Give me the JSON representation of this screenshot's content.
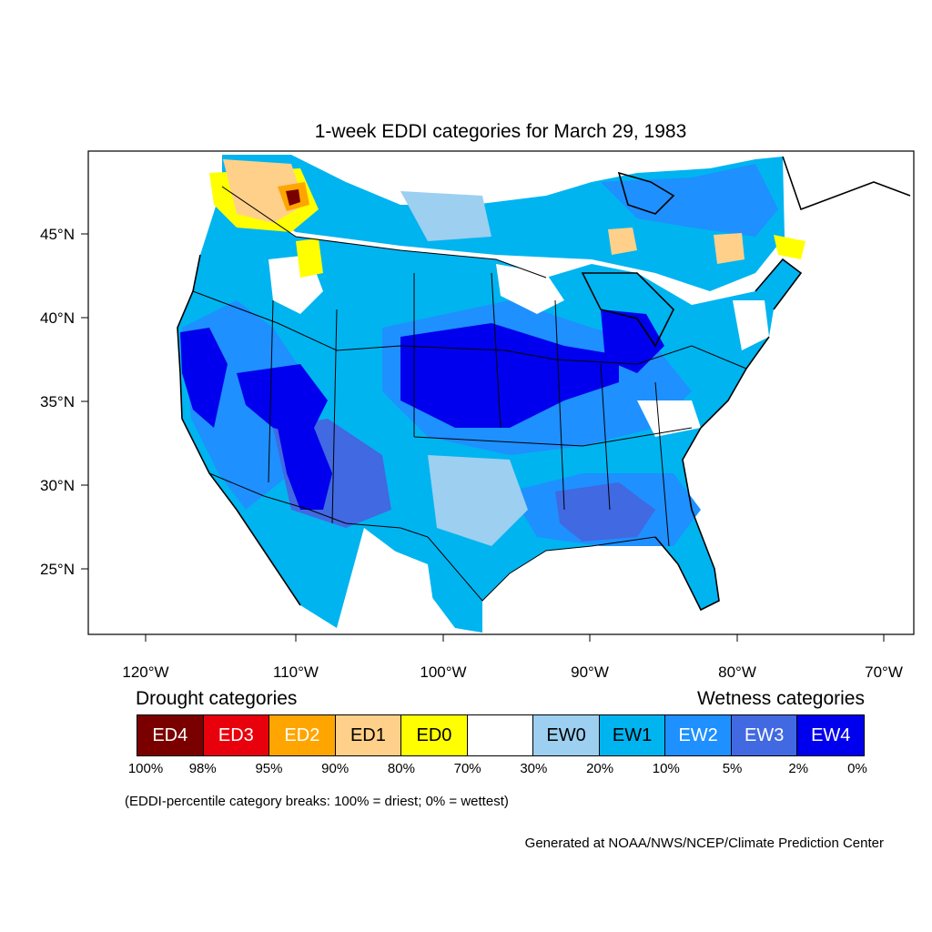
{
  "title": "1-week EDDI categories for March 29, 1983",
  "lat_labels": [
    "45°N",
    "40°N",
    "35°N",
    "30°N",
    "25°N"
  ],
  "lon_labels": [
    "120°W",
    "110°W",
    "100°W",
    "90°W",
    "80°W",
    "70°W"
  ],
  "legend": {
    "drought_heading": "Drought categories",
    "wetness_heading": "Wetness categories",
    "categories": [
      {
        "label": "ED4",
        "color": "#7a0000",
        "text_color": "#ffffff"
      },
      {
        "label": "ED3",
        "color": "#e8000c",
        "text_color": "#ffffff"
      },
      {
        "label": "ED2",
        "color": "#ffa500",
        "text_color": "#ffffff"
      },
      {
        "label": "ED1",
        "color": "#ffd08a",
        "text_color": "#000000"
      },
      {
        "label": "ED0",
        "color": "#ffff00",
        "text_color": "#000000"
      },
      {
        "label": "",
        "color": "#ffffff",
        "text_color": "#000000"
      },
      {
        "label": "EW0",
        "color": "#9ccff0",
        "text_color": "#000000"
      },
      {
        "label": "EW1",
        "color": "#00b4f0",
        "text_color": "#000000"
      },
      {
        "label": "EW2",
        "color": "#1e90ff",
        "text_color": "#ffffff"
      },
      {
        "label": "EW3",
        "color": "#4169e1",
        "text_color": "#ffffff"
      },
      {
        "label": "EW4",
        "color": "#0000ee",
        "text_color": "#ffffff"
      }
    ],
    "breaks": [
      "100%",
      "98%",
      "95%",
      "90%",
      "80%",
      "70%",
      "30%",
      "20%",
      "10%",
      "5%",
      "2%",
      "0%"
    ],
    "note": "(EDDI-percentile category breaks: 100% = driest; 0% = wettest)"
  },
  "credit": "Generated at NOAA/NWS/NCEP/Climate Prediction Center"
}
